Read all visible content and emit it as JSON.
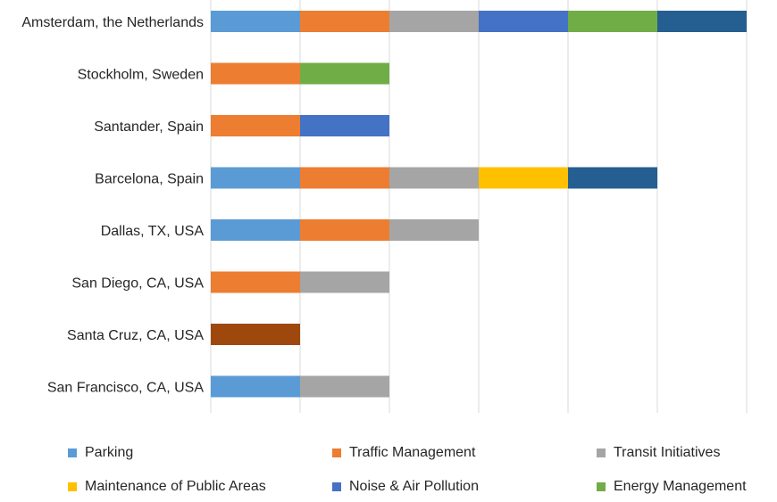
{
  "chart_data": {
    "type": "bar",
    "orientation": "horizontal",
    "stacked": true,
    "categories": [
      "Amsterdam, the Netherlands",
      "Stockholm, Sweden",
      "Santander, Spain",
      "Barcelona, Spain",
      "Dallas, TX, USA",
      "San Diego, CA, USA",
      "Santa Cruz, CA, USA",
      "San Francisco, CA, USA"
    ],
    "series": [
      {
        "name": "Parking",
        "color": "#5B9BD5",
        "values": [
          1,
          0,
          0,
          1,
          1,
          0,
          0,
          1
        ]
      },
      {
        "name": "Traffic Management",
        "color": "#ED7D31",
        "values": [
          1,
          1,
          1,
          1,
          1,
          1,
          0,
          0
        ]
      },
      {
        "name": "Transit Initiatives",
        "color": "#A5A5A5",
        "values": [
          1,
          0,
          0,
          1,
          1,
          1,
          0,
          1
        ]
      },
      {
        "name": "Maintenance of Public Areas",
        "color": "#FFC000",
        "values": [
          0,
          0,
          0,
          1,
          0,
          0,
          0,
          0
        ]
      },
      {
        "name": "Noise & Air Pollution",
        "color": "#4472C4",
        "values": [
          1,
          0,
          1,
          0,
          0,
          0,
          0,
          0
        ]
      },
      {
        "name": "Energy Management",
        "color": "#70AD47",
        "values": [
          1,
          1,
          0,
          0,
          0,
          0,
          0,
          0
        ]
      },
      {
        "name": "",
        "color": "#255E91",
        "values": [
          1,
          0,
          0,
          1,
          0,
          0,
          0,
          0
        ]
      },
      {
        "name": "",
        "color": "#9E480E",
        "values": [
          0,
          0,
          0,
          0,
          0,
          0,
          1,
          0
        ]
      }
    ],
    "xlim": [
      0,
      6
    ],
    "grid": true,
    "legend_position": "bottom",
    "legend_columns": 3
  }
}
